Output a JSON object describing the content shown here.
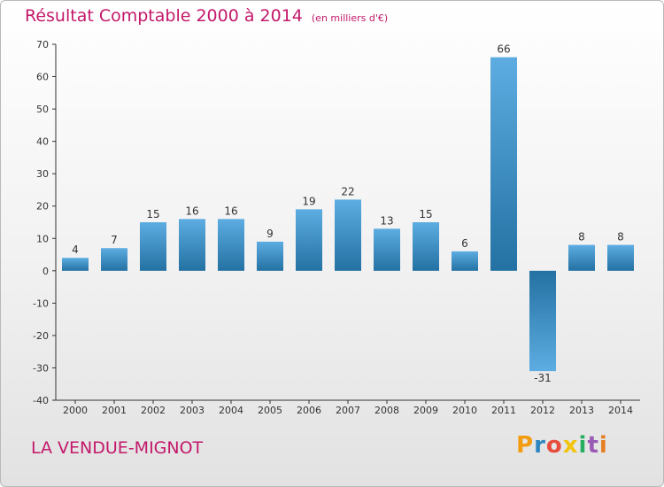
{
  "header": {
    "title": "Résultat Comptable 2000 à 2014",
    "unit": "(en milliers d'€)"
  },
  "footer": {
    "commune": "LA VENDUE-MIGNOT",
    "logo_text": "Proxiti",
    "logo_colors": [
      "#f39c12",
      "#2e86c1",
      "#e74c3c",
      "#f1c40f",
      "#27ae60",
      "#9b59b6",
      "#e67e22"
    ]
  },
  "colors": {
    "title": "#c3186a",
    "bar_light": "#5dade2",
    "bar_dark": "#2471a3",
    "axis": "#333333"
  },
  "chart_data": {
    "type": "bar",
    "title": "Résultat Comptable 2000 à 2014",
    "xlabel": "",
    "ylabel": "",
    "ylim": [
      -40,
      70
    ],
    "yticks": [
      70,
      60,
      50,
      40,
      30,
      20,
      10,
      0,
      -10,
      -20,
      -30,
      -40
    ],
    "categories": [
      "2000",
      "2001",
      "2002",
      "2003",
      "2004",
      "2005",
      "2006",
      "2007",
      "2008",
      "2009",
      "2010",
      "2011",
      "2012",
      "2013",
      "2014"
    ],
    "values": [
      4,
      7,
      15,
      16,
      16,
      9,
      19,
      22,
      13,
      15,
      6,
      66,
      -31,
      8,
      8
    ],
    "grid": false
  }
}
